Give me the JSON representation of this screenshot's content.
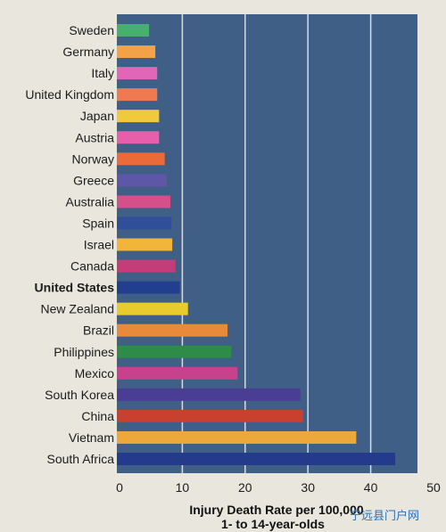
{
  "chart_data": {
    "type": "bar",
    "orientation": "horizontal",
    "categories": [
      "Sweden",
      "Germany",
      "Italy",
      "United Kingdom",
      "Japan",
      "Austria",
      "Norway",
      "Greece",
      "Australia",
      "Spain",
      "Israel",
      "Canada",
      "United States",
      "New Zealand",
      "Brazil",
      "Philippines",
      "Mexico",
      "South Korea",
      "China",
      "Vietnam",
      "South Africa"
    ],
    "values": [
      4.7,
      5.7,
      6.0,
      6.0,
      6.3,
      6.3,
      7.2,
      7.5,
      8.1,
      8.3,
      8.4,
      8.9,
      9.6,
      10.9,
      17.2,
      17.8,
      18.8,
      28.8,
      29.2,
      37.7,
      43.9
    ],
    "highlight": "United States",
    "xlabel_line1": "Injury Death Rate per 100,000",
    "xlabel_line2": "1- to 14-year-olds",
    "xticks": [
      "0",
      "10",
      "20",
      "30",
      "40",
      "50"
    ],
    "xlim": [
      0,
      50
    ],
    "grid": true,
    "colors": {
      "plot_bg": "#3f5f86",
      "grid": "#d7dde6",
      "bars": [
        "#48b06e",
        "#f3a248",
        "#e266b7",
        "#ef7a52",
        "#f0c93c",
        "#e55faa",
        "#ea6a3a",
        "#5e57a8",
        "#d4508a",
        "#2f4f99",
        "#f0b53a",
        "#c43c78",
        "#223f8e",
        "#e8cc2e",
        "#e98a3a",
        "#2e8c48",
        "#c8418c",
        "#4a3e94",
        "#c8402e",
        "#eca83a",
        "#243a8a"
      ]
    }
  },
  "watermark": "宁远县门户网"
}
